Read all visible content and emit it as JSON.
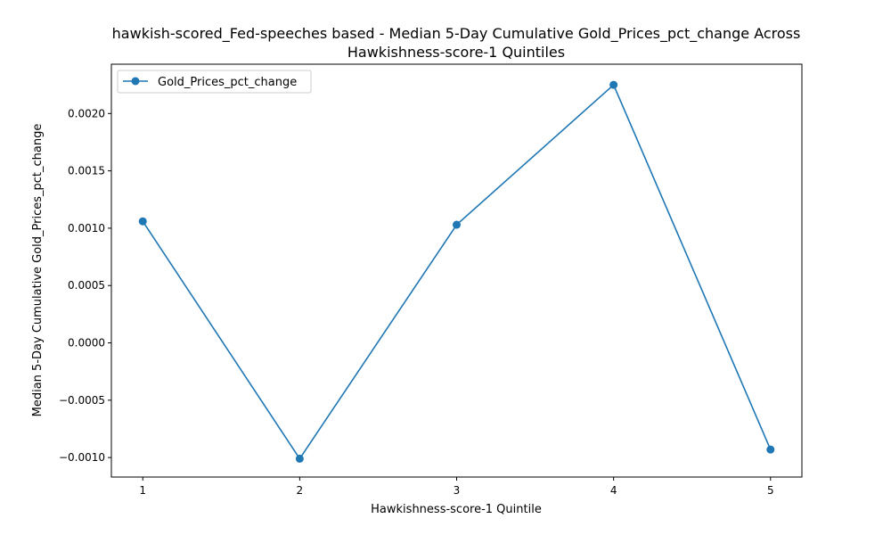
{
  "chart_data": {
    "type": "line",
    "title_lines": [
      "hawkish-scored_Fed-speeches based - Median 5-Day Cumulative Gold_Prices_pct_change Across",
      "Hawkishness-score-1 Quintiles"
    ],
    "xlabel": "Hawkishness-score-1 Quintile",
    "ylabel": "Median 5-Day Cumulative Gold_Prices_pct_change",
    "x": [
      1,
      2,
      3,
      4,
      5
    ],
    "x_tick_labels": [
      "1",
      "2",
      "3",
      "4",
      "5"
    ],
    "xlim": [
      0.8,
      5.2
    ],
    "y_ticks": [
      -0.001,
      -0.0005,
      0.0,
      0.0005,
      0.001,
      0.0015,
      0.002
    ],
    "y_tick_labels": [
      "−0.0010",
      "−0.0005",
      "0.0000",
      "0.0005",
      "0.0010",
      "0.0015",
      "0.0020"
    ],
    "ylim": [
      -0.00117,
      0.00243
    ],
    "grid": false,
    "legend_position": "upper left",
    "series": [
      {
        "name": "Gold_Prices_pct_change",
        "color": "#1f77b4",
        "marker": "circle",
        "values": [
          0.00106,
          -0.00101,
          0.00103,
          0.00225,
          -0.00093
        ]
      }
    ]
  }
}
